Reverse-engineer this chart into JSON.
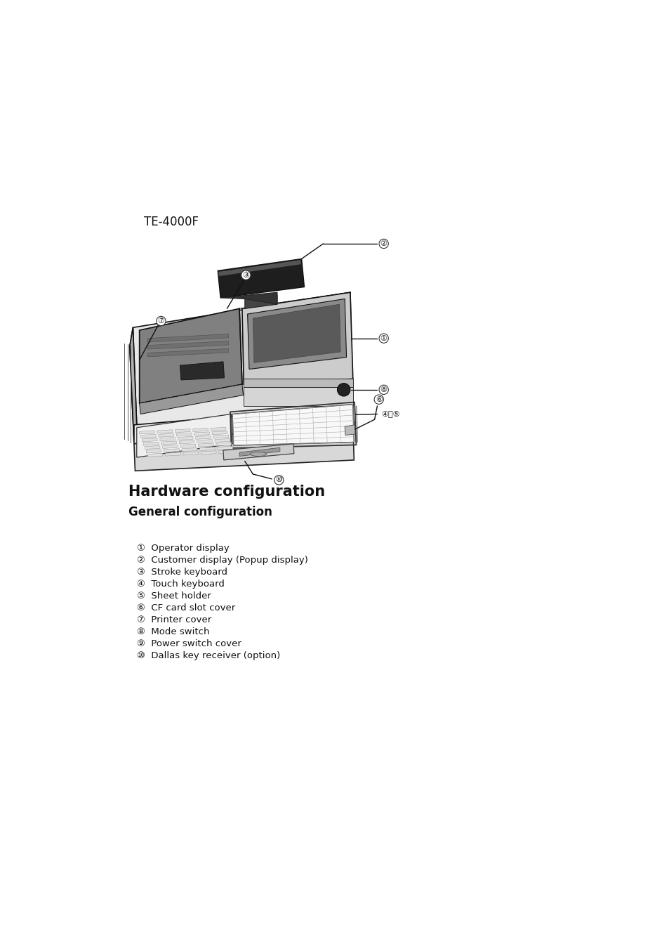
{
  "bg_color": "#ffffff",
  "title_model": "TE-4000F",
  "section_title": "Hardware configuration",
  "subsection_title": "General configuration",
  "items": [
    "①  Operator display",
    "②  Customer display (Popup display)",
    "③  Stroke keyboard",
    "④  Touch keyboard",
    "⑤  Sheet holder",
    "⑥  CF card slot cover",
    "⑦  Printer cover",
    "⑧  Mode switch",
    "⑨  Power switch cover",
    "⑩  Dallas key receiver (option)"
  ],
  "section_title_fontsize": 15,
  "subsection_title_fontsize": 12,
  "items_fontsize": 9.5,
  "model_label_fontsize": 12,
  "line_color": "#111111",
  "fill_dark": "#808080",
  "fill_mid": "#b0b0b0",
  "fill_light": "#d8d8d8",
  "fill_lighter": "#e8e8e8",
  "fill_white": "#f5f5f5",
  "fill_black": "#2a2a2a"
}
